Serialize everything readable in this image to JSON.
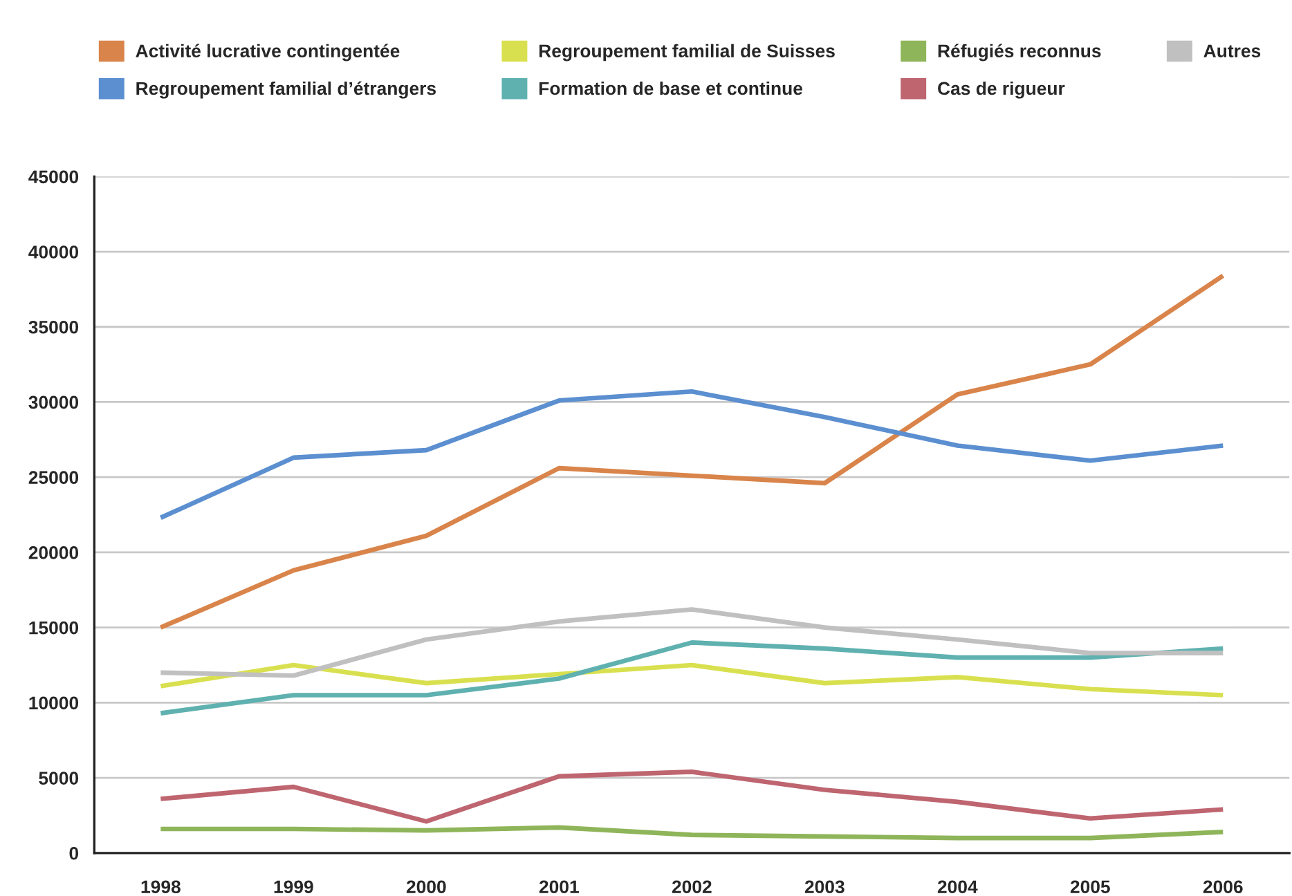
{
  "chart_data": {
    "type": "line",
    "categories": [
      "1998",
      "1999",
      "2000",
      "2001",
      "2002",
      "2003",
      "2004",
      "2005",
      "2006"
    ],
    "series": [
      {
        "name": "Activité lucrative contingentée",
        "color": "#d9844a",
        "values": [
          15000,
          18800,
          21100,
          25600,
          25100,
          24600,
          30500,
          32500,
          38400
        ]
      },
      {
        "name": "Regroupement familial d’étrangers",
        "color": "#5b8fd0",
        "values": [
          22300,
          26300,
          26800,
          30100,
          30700,
          29000,
          27100,
          26100,
          27100
        ]
      },
      {
        "name": "Regroupement familial de Suisses",
        "color": "#d9e04f",
        "values": [
          11100,
          12500,
          11300,
          11900,
          12500,
          11300,
          11700,
          10900,
          10500
        ]
      },
      {
        "name": "Formation de base et continue",
        "color": "#5fb1b0",
        "values": [
          9300,
          10500,
          10500,
          11600,
          14000,
          13600,
          13000,
          13000,
          13600
        ]
      },
      {
        "name": "Réfugiés reconnus",
        "color": "#8fb55a",
        "values": [
          1600,
          1600,
          1500,
          1700,
          1200,
          1100,
          1000,
          1000,
          1400
        ]
      },
      {
        "name": "Cas de rigueur",
        "color": "#be6570",
        "values": [
          3600,
          4400,
          2100,
          5100,
          5400,
          4200,
          3400,
          2300,
          2900
        ]
      },
      {
        "name": "Autres",
        "color": "#c0c0c0",
        "values": [
          12000,
          11800,
          14200,
          15400,
          16200,
          15000,
          14200,
          13300,
          13300
        ]
      }
    ],
    "ylim": [
      0,
      45000
    ],
    "yticks": [
      0,
      5000,
      10000,
      15000,
      20000,
      25000,
      30000,
      35000,
      40000,
      45000
    ],
    "grid": "y",
    "legend": "top"
  }
}
